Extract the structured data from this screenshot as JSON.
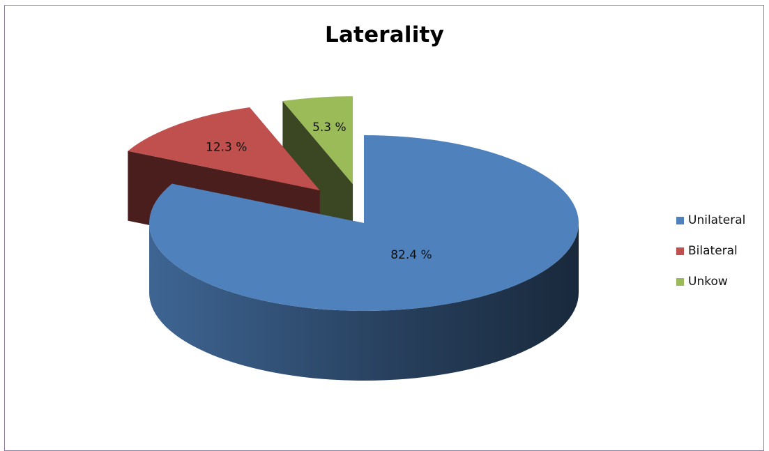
{
  "chart_data": {
    "type": "pie",
    "title": "Laterality",
    "slices": [
      {
        "name": "Unilateral",
        "value": 82.4,
        "label": "82.4 %",
        "color": "#4f81bd",
        "exploded": false
      },
      {
        "name": "Bilateral",
        "value": 12.3,
        "label": "12.3 %",
        "color": "#c0504d",
        "exploded": true
      },
      {
        "name": "Unkow",
        "value": 5.3,
        "label": "5.3 %",
        "color": "#9bbb59",
        "exploded": true
      }
    ],
    "legend": {
      "position": "right",
      "entries": [
        "Unilateral",
        "Bilateral",
        "Unkow"
      ]
    },
    "style": "3d-exploded-pie"
  }
}
